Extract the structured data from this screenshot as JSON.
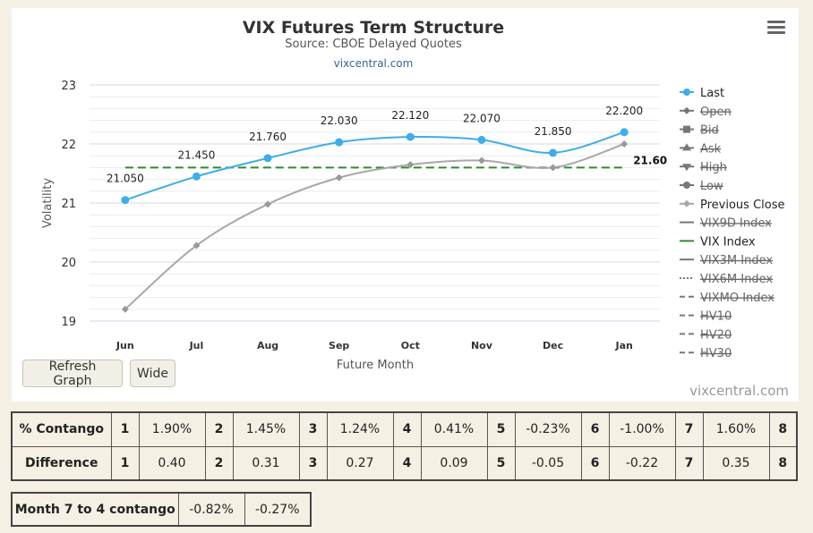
{
  "chart_data": {
    "type": "line",
    "title": "VIX Futures Term Structure",
    "subtitle": "Source: CBOE Delayed Quotes",
    "link_text": "vixcentral.com",
    "xlabel": "Future Month",
    "ylabel": "Volatility",
    "categories": [
      "Jun",
      "Jul",
      "Aug",
      "Sep",
      "Oct",
      "Nov",
      "Dec",
      "Jan"
    ],
    "ylim": [
      19,
      23
    ],
    "yticks": [
      "19",
      "20",
      "21",
      "22",
      "23"
    ],
    "grid": true,
    "legend_position": "right",
    "series": [
      {
        "name": "Last",
        "color": "#3daee9",
        "values": [
          21.05,
          21.45,
          21.76,
          22.03,
          22.12,
          22.07,
          21.85,
          22.2
        ],
        "labels": [
          "21.050",
          "21.450",
          "21.760",
          "22.030",
          "22.120",
          "22.070",
          "21.850",
          "22.200"
        ]
      },
      {
        "name": "Previous Close",
        "color": "#a8a8a8",
        "values": [
          19.2,
          20.28,
          20.98,
          21.43,
          21.65,
          21.72,
          21.6,
          22.0
        ]
      },
      {
        "name": "VIX Index",
        "color": "#2e8b2e",
        "values": [
          21.6,
          21.6,
          21.6,
          21.6,
          21.6,
          21.6,
          21.6,
          21.6
        ],
        "end_label": "21.60"
      }
    ],
    "legend": [
      {
        "label": "Last",
        "symbol": "circle",
        "color": "#3daee9",
        "hidden": false
      },
      {
        "label": "Open",
        "symbol": "diamond",
        "color": "#666666",
        "hidden": true
      },
      {
        "label": "Bid",
        "symbol": "square",
        "color": "#666666",
        "hidden": true
      },
      {
        "label": "Ask",
        "symbol": "triangle-up",
        "color": "#666666",
        "hidden": true
      },
      {
        "label": "High",
        "symbol": "triangle-down",
        "color": "#666666",
        "hidden": true
      },
      {
        "label": "Low",
        "symbol": "circle",
        "color": "#666666",
        "hidden": true
      },
      {
        "label": "Previous Close",
        "symbol": "diamond",
        "color": "#a8a8a8",
        "hidden": false
      },
      {
        "label": "VIX9D Index",
        "symbol": "line",
        "color": "#666666",
        "hidden": true
      },
      {
        "label": "VIX Index",
        "symbol": "line",
        "color": "#2e8b2e",
        "hidden": false
      },
      {
        "label": "VIX3M Index",
        "symbol": "line",
        "color": "#666666",
        "hidden": true
      },
      {
        "label": "VIX6M Index",
        "symbol": "dotted",
        "color": "#666666",
        "hidden": true
      },
      {
        "label": "VIXMO Index",
        "symbol": "dashed",
        "color": "#666666",
        "hidden": true
      },
      {
        "label": "HV10",
        "symbol": "dashed",
        "color": "#666666",
        "hidden": true
      },
      {
        "label": "HV20",
        "symbol": "dashed",
        "color": "#666666",
        "hidden": true
      },
      {
        "label": "HV30",
        "symbol": "dashed",
        "color": "#666666",
        "hidden": true
      }
    ]
  },
  "buttons": {
    "refresh": "Refresh Graph",
    "wide": "Wide"
  },
  "credit": "vixcentral.com",
  "stats": {
    "contango_label": "% Contango",
    "difference_label": "Difference",
    "month_numbers": [
      "1",
      "2",
      "3",
      "4",
      "5",
      "6",
      "7",
      "8"
    ],
    "contango_values": [
      "1.90%",
      "1.45%",
      "1.24%",
      "0.41%",
      "-0.23%",
      "-1.00%",
      "1.60%"
    ],
    "difference_values": [
      "0.40",
      "0.31",
      "0.27",
      "0.09",
      "-0.05",
      "-0.22",
      "0.35"
    ]
  },
  "month_contango": {
    "label": "Month 7 to 4 contango",
    "values": [
      "-0.82%",
      "-0.27%"
    ]
  }
}
